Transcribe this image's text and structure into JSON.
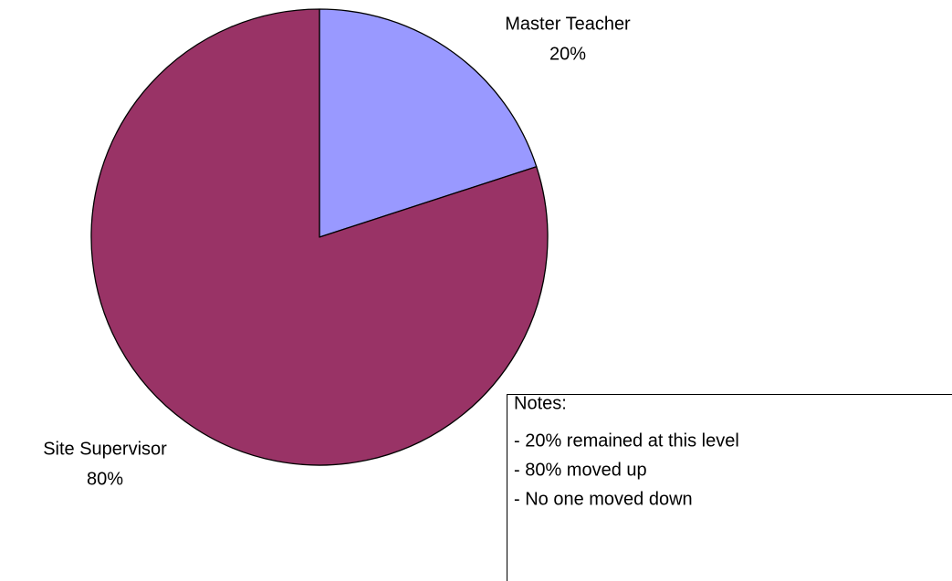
{
  "chart_data": {
    "type": "pie",
    "categories": [
      "Master Teacher",
      "Site Supervisor"
    ],
    "values": [
      20,
      80
    ],
    "value_labels": [
      "20%",
      "80%"
    ],
    "colors": [
      "#9999ff",
      "#993366"
    ]
  },
  "notes": {
    "title": "Notes:",
    "lines": [
      "- 20% remained at this level",
      "- 80% moved up",
      "- No one moved down"
    ]
  }
}
